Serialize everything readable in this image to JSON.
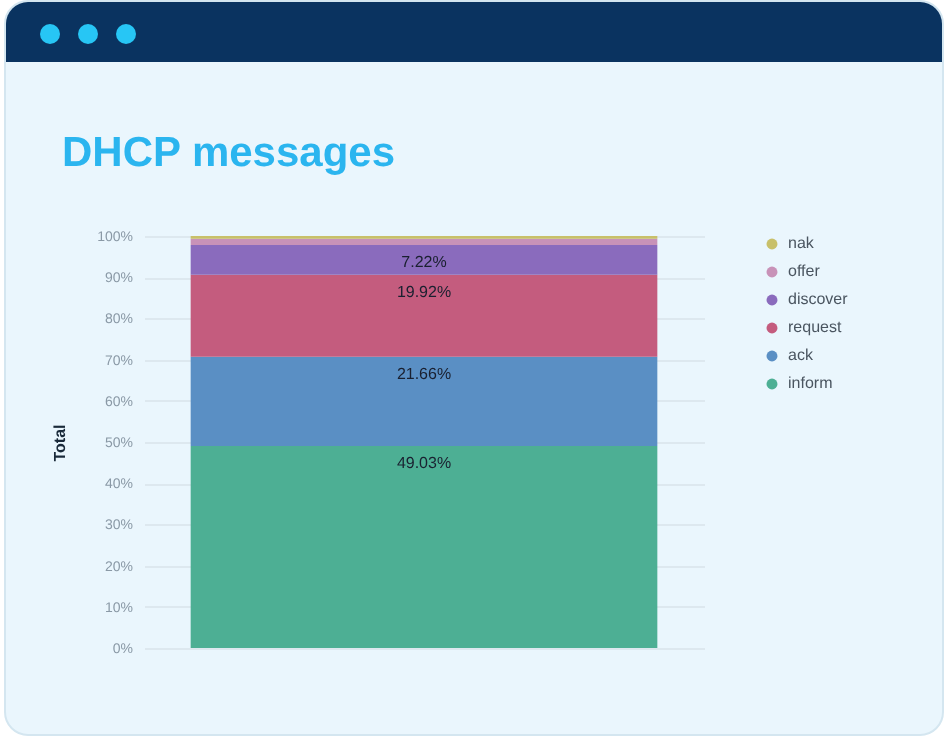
{
  "chart_data": {
    "type": "bar",
    "title": "DHCP messages",
    "ylabel": "Total",
    "stacked": true,
    "categories": [
      null
    ],
    "series": [
      {
        "name": "inform",
        "color": "#4daf94",
        "values": [
          49.03
        ],
        "value_labels": [
          "49.03%"
        ]
      },
      {
        "name": "ack",
        "color": "#5a8fc4",
        "values": [
          21.66
        ],
        "value_labels": [
          "21.66%"
        ]
      },
      {
        "name": "request",
        "color": "#c45c7e",
        "values": [
          19.92
        ],
        "value_labels": [
          "19.92%"
        ]
      },
      {
        "name": "discover",
        "color": "#8a6bbd",
        "values": [
          7.22
        ],
        "value_labels": [
          "7.22%"
        ]
      },
      {
        "name": "offer",
        "color": "#c892b8",
        "values": [
          1.5
        ],
        "value_labels": [
          null
        ]
      },
      {
        "name": "nak",
        "color": "#c8c06a",
        "values": [
          0.7
        ],
        "value_labels": [
          null
        ]
      }
    ],
    "ylim": [
      0,
      100
    ],
    "yticks": [
      {
        "value": 0,
        "label": "0%"
      },
      {
        "value": 10,
        "label": "10%"
      },
      {
        "value": 20,
        "label": "20%"
      },
      {
        "value": 30,
        "label": "30%"
      },
      {
        "value": 40,
        "label": "40%"
      },
      {
        "value": 50,
        "label": "50%"
      },
      {
        "value": 60,
        "label": "60%"
      },
      {
        "value": 70,
        "label": "70%"
      },
      {
        "value": 80,
        "label": "80%"
      },
      {
        "value": 90,
        "label": "90%"
      },
      {
        "value": 100,
        "label": "100%"
      }
    ],
    "grid": "y",
    "legend": "top right"
  }
}
